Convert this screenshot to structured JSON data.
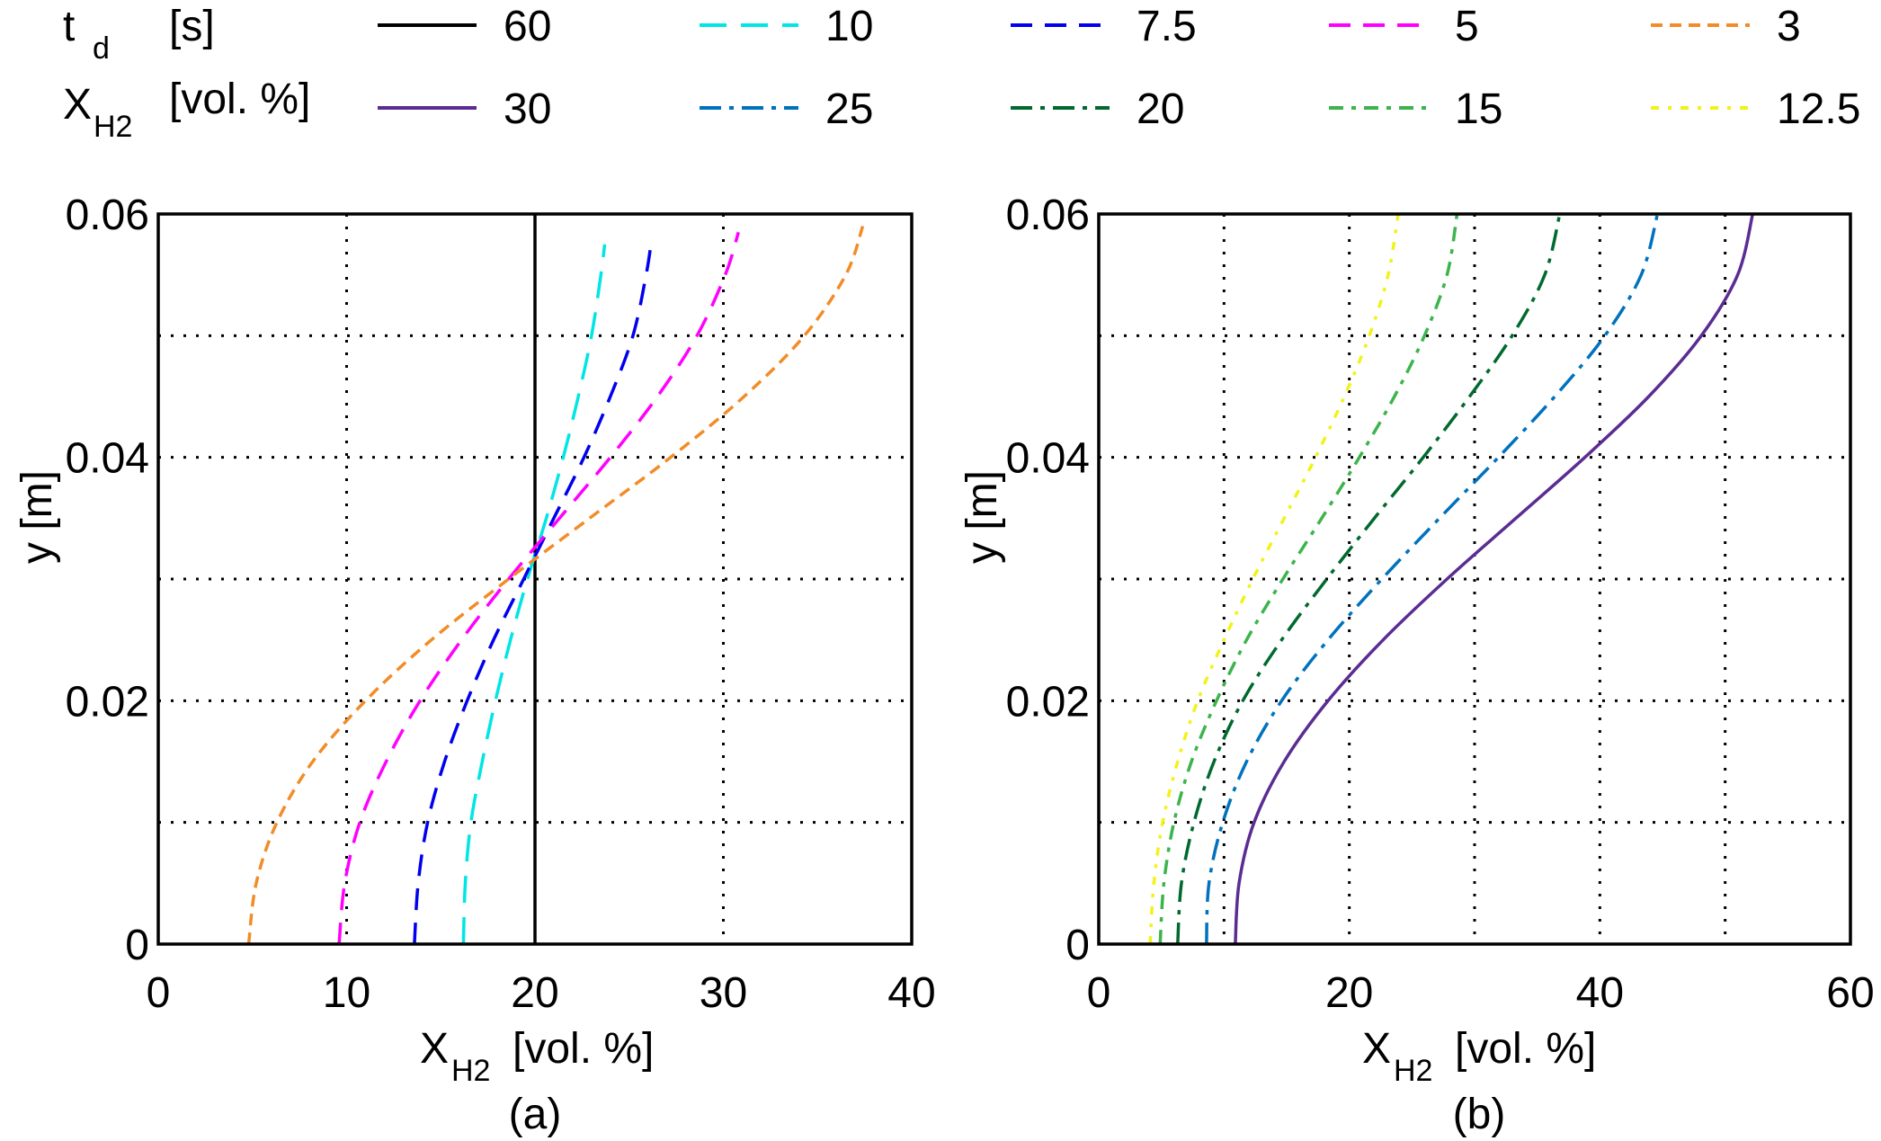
{
  "legend": {
    "row1_symbol": "t",
    "row1_symbol_sub": "d",
    "row1_unit": "[s]",
    "row2_symbol": "X",
    "row2_symbol_sub": "H2",
    "row2_unit": "[vol. %]",
    "entries": [
      {
        "label": "60",
        "color": "#000000",
        "dash": "solid",
        "row": 1
      },
      {
        "label": "10",
        "color": "#00e5e5",
        "dash": "dash-long",
        "row": 1
      },
      {
        "label": "7.5",
        "color": "#0000ee",
        "dash": "dash",
        "row": 1
      },
      {
        "label": "5",
        "color": "#ff00ff",
        "dash": "dash",
        "row": 1
      },
      {
        "label": "3",
        "color": "#f28c28",
        "dash": "dash-short",
        "row": 1
      },
      {
        "label": "30",
        "color": "#5b2c91",
        "dash": "solid",
        "row": 2
      },
      {
        "label": "25",
        "color": "#0072bd",
        "dash": "dashdot",
        "row": 2
      },
      {
        "label": "20",
        "color": "#006a2e",
        "dash": "dashdot",
        "row": 2
      },
      {
        "label": "15",
        "color": "#3cb44b",
        "dash": "dashdot-short",
        "row": 2
      },
      {
        "label": "12.5",
        "color": "#f2f21a",
        "dash": "dot-dash",
        "row": 2
      }
    ]
  },
  "chart_data": [
    {
      "type": "line",
      "panel_label": "(a)",
      "xlabel_main": "X",
      "xlabel_sub": "H2",
      "xlabel_unit": "[vol. %]",
      "ylabel": "y [m]",
      "xlim": [
        0,
        40
      ],
      "ylim": [
        0,
        0.06
      ],
      "xticks": [
        0,
        10,
        20,
        30,
        40
      ],
      "yticks": [
        0,
        0.02,
        0.04,
        0.06
      ],
      "ytick_labels": [
        "0",
        "0.02",
        "0.04",
        "0.06"
      ],
      "grid": true,
      "series": [
        {
          "legend_index": 0,
          "points": [
            [
              20.0,
              0
            ],
            [
              20.0,
              0.06
            ]
          ]
        },
        {
          "legend_index": 1,
          "points": [
            [
              16.2,
              0
            ],
            [
              16.3,
              0.005
            ],
            [
              16.6,
              0.01
            ],
            [
              17.2,
              0.015
            ],
            [
              17.9,
              0.02
            ],
            [
              18.7,
              0.025
            ],
            [
              19.6,
              0.03
            ],
            [
              20.6,
              0.035
            ],
            [
              21.5,
              0.04
            ],
            [
              22.3,
              0.045
            ],
            [
              23.0,
              0.05
            ],
            [
              23.5,
              0.055
            ],
            [
              23.7,
              0.0575
            ]
          ]
        },
        {
          "legend_index": 2,
          "points": [
            [
              13.6,
              0
            ],
            [
              13.8,
              0.005
            ],
            [
              14.3,
              0.01
            ],
            [
              15.2,
              0.015
            ],
            [
              16.4,
              0.02
            ],
            [
              17.8,
              0.025
            ],
            [
              19.4,
              0.03
            ],
            [
              21.0,
              0.035
            ],
            [
              22.6,
              0.04
            ],
            [
              24.0,
              0.045
            ],
            [
              25.2,
              0.05
            ],
            [
              25.9,
              0.055
            ],
            [
              26.2,
              0.058
            ]
          ]
        },
        {
          "legend_index": 3,
          "points": [
            [
              9.6,
              0
            ],
            [
              9.9,
              0.005
            ],
            [
              10.7,
              0.01
            ],
            [
              12.1,
              0.015
            ],
            [
              13.9,
              0.02
            ],
            [
              16.1,
              0.025
            ],
            [
              18.6,
              0.03
            ],
            [
              21.3,
              0.035
            ],
            [
              24.0,
              0.04
            ],
            [
              26.5,
              0.045
            ],
            [
              28.6,
              0.05
            ],
            [
              30.1,
              0.055
            ],
            [
              30.8,
              0.0585
            ]
          ]
        },
        {
          "legend_index": 4,
          "points": [
            [
              4.8,
              0
            ],
            [
              5.2,
              0.005
            ],
            [
              6.3,
              0.01
            ],
            [
              8.2,
              0.015
            ],
            [
              11.0,
              0.02
            ],
            [
              14.5,
              0.025
            ],
            [
              18.6,
              0.03
            ],
            [
              22.9,
              0.035
            ],
            [
              27.2,
              0.04
            ],
            [
              31.1,
              0.045
            ],
            [
              34.3,
              0.05
            ],
            [
              36.5,
              0.055
            ],
            [
              37.4,
              0.059
            ]
          ]
        }
      ]
    },
    {
      "type": "line",
      "panel_label": "(b)",
      "xlabel_main": "X",
      "xlabel_sub": "H2",
      "xlabel_unit": "[vol. %]",
      "ylabel": "y [m]",
      "xlim": [
        0,
        60
      ],
      "ylim": [
        0,
        0.06
      ],
      "xticks": [
        0,
        20,
        40,
        60
      ],
      "xgrid": [
        10,
        20,
        30,
        40,
        50
      ],
      "yticks": [
        0,
        0.02,
        0.04,
        0.06
      ],
      "ytick_labels": [
        "0",
        "0.02",
        "0.04",
        "0.06"
      ],
      "grid": true,
      "series": [
        {
          "legend_index": 5,
          "points": [
            [
              10.9,
              0
            ],
            [
              11.2,
              0.005
            ],
            [
              12.4,
              0.01
            ],
            [
              14.8,
              0.015
            ],
            [
              18.3,
              0.02
            ],
            [
              22.7,
              0.025
            ],
            [
              27.8,
              0.03
            ],
            [
              33.3,
              0.035
            ],
            [
              38.8,
              0.04
            ],
            [
              43.9,
              0.045
            ],
            [
              48.1,
              0.05
            ],
            [
              51.0,
              0.055
            ],
            [
              52.2,
              0.06
            ]
          ]
        },
        {
          "legend_index": 6,
          "points": [
            [
              8.6,
              0
            ],
            [
              8.8,
              0.005
            ],
            [
              9.9,
              0.01
            ],
            [
              11.8,
              0.015
            ],
            [
              14.6,
              0.02
            ],
            [
              18.3,
              0.025
            ],
            [
              22.6,
              0.03
            ],
            [
              27.2,
              0.035
            ],
            [
              31.9,
              0.04
            ],
            [
              36.4,
              0.045
            ],
            [
              40.4,
              0.05
            ],
            [
              43.3,
              0.055
            ],
            [
              44.6,
              0.06
            ]
          ]
        },
        {
          "legend_index": 7,
          "points": [
            [
              6.3,
              0
            ],
            [
              6.6,
              0.005
            ],
            [
              7.6,
              0.01
            ],
            [
              9.2,
              0.015
            ],
            [
              11.5,
              0.02
            ],
            [
              14.6,
              0.025
            ],
            [
              18.2,
              0.03
            ],
            [
              22.0,
              0.035
            ],
            [
              25.9,
              0.04
            ],
            [
              29.6,
              0.045
            ],
            [
              33.0,
              0.05
            ],
            [
              35.6,
              0.055
            ],
            [
              36.8,
              0.06
            ]
          ]
        },
        {
          "legend_index": 8,
          "points": [
            [
              4.9,
              0
            ],
            [
              5.2,
              0.005
            ],
            [
              6.0,
              0.01
            ],
            [
              7.4,
              0.015
            ],
            [
              9.4,
              0.02
            ],
            [
              11.8,
              0.025
            ],
            [
              14.7,
              0.03
            ],
            [
              17.8,
              0.035
            ],
            [
              20.8,
              0.04
            ],
            [
              23.6,
              0.045
            ],
            [
              26.0,
              0.05
            ],
            [
              27.8,
              0.055
            ],
            [
              28.6,
              0.06
            ]
          ]
        },
        {
          "legend_index": 9,
          "points": [
            [
              4.1,
              0
            ],
            [
              4.4,
              0.005
            ],
            [
              5.1,
              0.01
            ],
            [
              6.3,
              0.015
            ],
            [
              7.9,
              0.02
            ],
            [
              10.0,
              0.025
            ],
            [
              12.3,
              0.03
            ],
            [
              14.8,
              0.035
            ],
            [
              17.3,
              0.04
            ],
            [
              19.6,
              0.045
            ],
            [
              21.6,
              0.05
            ],
            [
              23.1,
              0.055
            ],
            [
              23.9,
              0.06
            ]
          ]
        }
      ]
    }
  ]
}
